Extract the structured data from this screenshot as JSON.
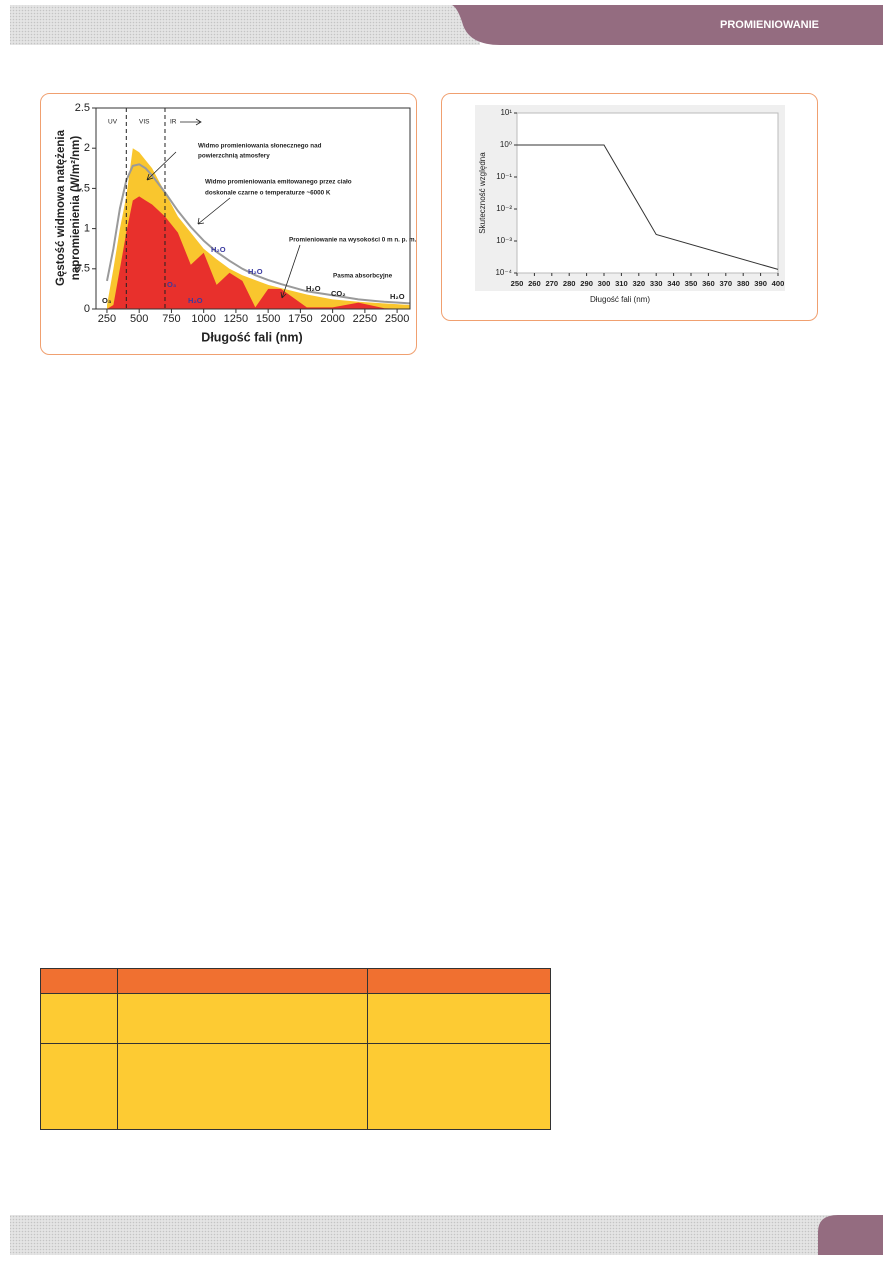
{
  "header": {
    "section": "PROMIENIOWANIE"
  },
  "chart_data": [
    {
      "type": "area",
      "ylabel": [
        "Gęstość widmowa natężenia",
        "napromienienia (W/m²/nm)"
      ],
      "xlabel": "Długość fali (nm)",
      "x": [
        250,
        300,
        350,
        400,
        450,
        500,
        550,
        600,
        700,
        800,
        900,
        1000,
        1100,
        1200,
        1300,
        1400,
        1500,
        1600,
        1800,
        2000,
        2200,
        2400,
        2600
      ],
      "series": [
        {
          "type": "area",
          "color": "#f9c62e",
          "values": [
            0.05,
            0.5,
            1.0,
            1.4,
            2.0,
            1.95,
            1.85,
            1.75,
            1.45,
            1.15,
            0.95,
            0.75,
            0.62,
            0.5,
            0.42,
            0.36,
            0.3,
            0.26,
            0.18,
            0.12,
            0.09,
            0.07,
            0.05
          ]
        },
        {
          "type": "area",
          "color": "#e8302c",
          "values": [
            0,
            0.05,
            0.5,
            0.95,
            1.35,
            1.4,
            1.35,
            1.3,
            1.15,
            0.95,
            0.55,
            0.7,
            0.3,
            0.45,
            0.35,
            0.02,
            0.25,
            0.25,
            0.02,
            0.02,
            0.08,
            0.01,
            0
          ]
        },
        {
          "type": "line",
          "color": "#9a9a9a",
          "values": [
            0.35,
            0.75,
            1.25,
            1.6,
            1.78,
            1.8,
            1.75,
            1.66,
            1.45,
            1.22,
            1.02,
            0.85,
            0.71,
            0.6,
            0.5,
            0.42,
            0.36,
            0.31,
            0.22,
            0.17,
            0.12,
            0.09,
            0.07
          ]
        }
      ],
      "xlim": [
        165,
        2600
      ],
      "xticks": [
        250,
        500,
        750,
        1000,
        1250,
        1500,
        1750,
        2000,
        2250,
        2500
      ],
      "ylim": [
        0,
        2.5
      ],
      "yticks": [
        0,
        0.5,
        1,
        1.5,
        2,
        2.5
      ],
      "dividers": [
        400,
        700
      ],
      "annotations": [
        "UV",
        "VIS",
        "IR",
        "Widmo promieniowania słonecznego nad",
        "powierzchnią atmosfery",
        "Widmo promieniowania emitowanego przez ciało",
        "doskonale czarne o temperaturze ~6000 K",
        "Promieniowanie na wysokości 0 m n. p. m.",
        "Pasma absorbcyjne",
        "O₃",
        "O₃",
        "H₂O",
        "H₂O",
        "H₂O",
        "H₂O",
        "CO₂",
        "H₂O"
      ]
    },
    {
      "type": "line",
      "ylabel": "Skuteczność względna",
      "xlabel": "Długość fali (nm)",
      "x": [
        250,
        300,
        330,
        400
      ],
      "values": [
        1,
        1,
        0.0016,
        0.00013
      ],
      "color": "#333333",
      "yscale": "log",
      "xlim": [
        250,
        400
      ],
      "xticks": [
        250,
        260,
        270,
        280,
        290,
        300,
        310,
        320,
        330,
        340,
        350,
        360,
        370,
        380,
        390,
        400
      ],
      "ylim": [
        0.0001,
        10
      ],
      "yticks": [
        {
          "value": 10,
          "label": "10¹"
        },
        {
          "value": 1,
          "label": "10⁰"
        },
        {
          "value": 0.1,
          "label": "10⁻¹"
        },
        {
          "value": 0.01,
          "label": "10⁻²"
        },
        {
          "value": 0.001,
          "label": "10⁻³"
        },
        {
          "value": 0.0001,
          "label": "10⁻⁴"
        }
      ]
    }
  ]
}
